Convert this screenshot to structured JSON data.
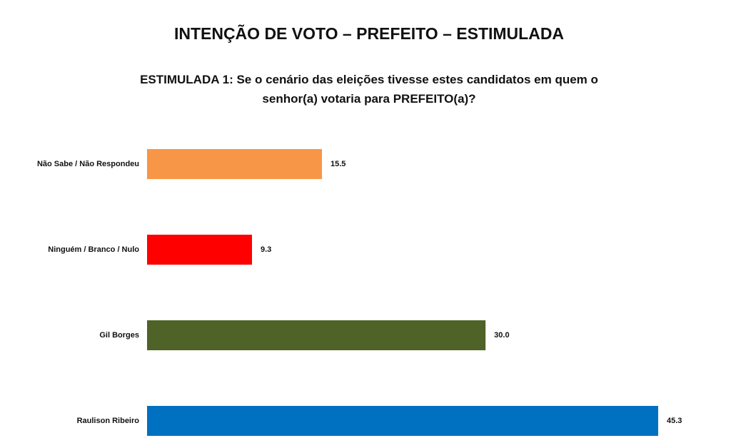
{
  "chart_data": {
    "type": "bar",
    "orientation": "horizontal",
    "title": "INTENÇÃO DE VOTO – PREFEITO – ESTIMULADA",
    "subtitle": "ESTIMULADA 1: Se o cenário das eleições tivesse estes candidatos em quem o senhor(a) votaria para PREFEITO(a)?",
    "categories": [
      "Não Sabe / Não Respondeu",
      "Ninguém / Branco / Nulo",
      "Gil Borges",
      "Raulison Ribeiro"
    ],
    "values": [
      15.5,
      9.3,
      30.0,
      45.3
    ],
    "value_labels": [
      "15.5",
      "9.3",
      "30.0",
      "45.3"
    ],
    "colors": [
      "#F79646",
      "#FF0000",
      "#4F6228",
      "#0070C0"
    ]
  }
}
